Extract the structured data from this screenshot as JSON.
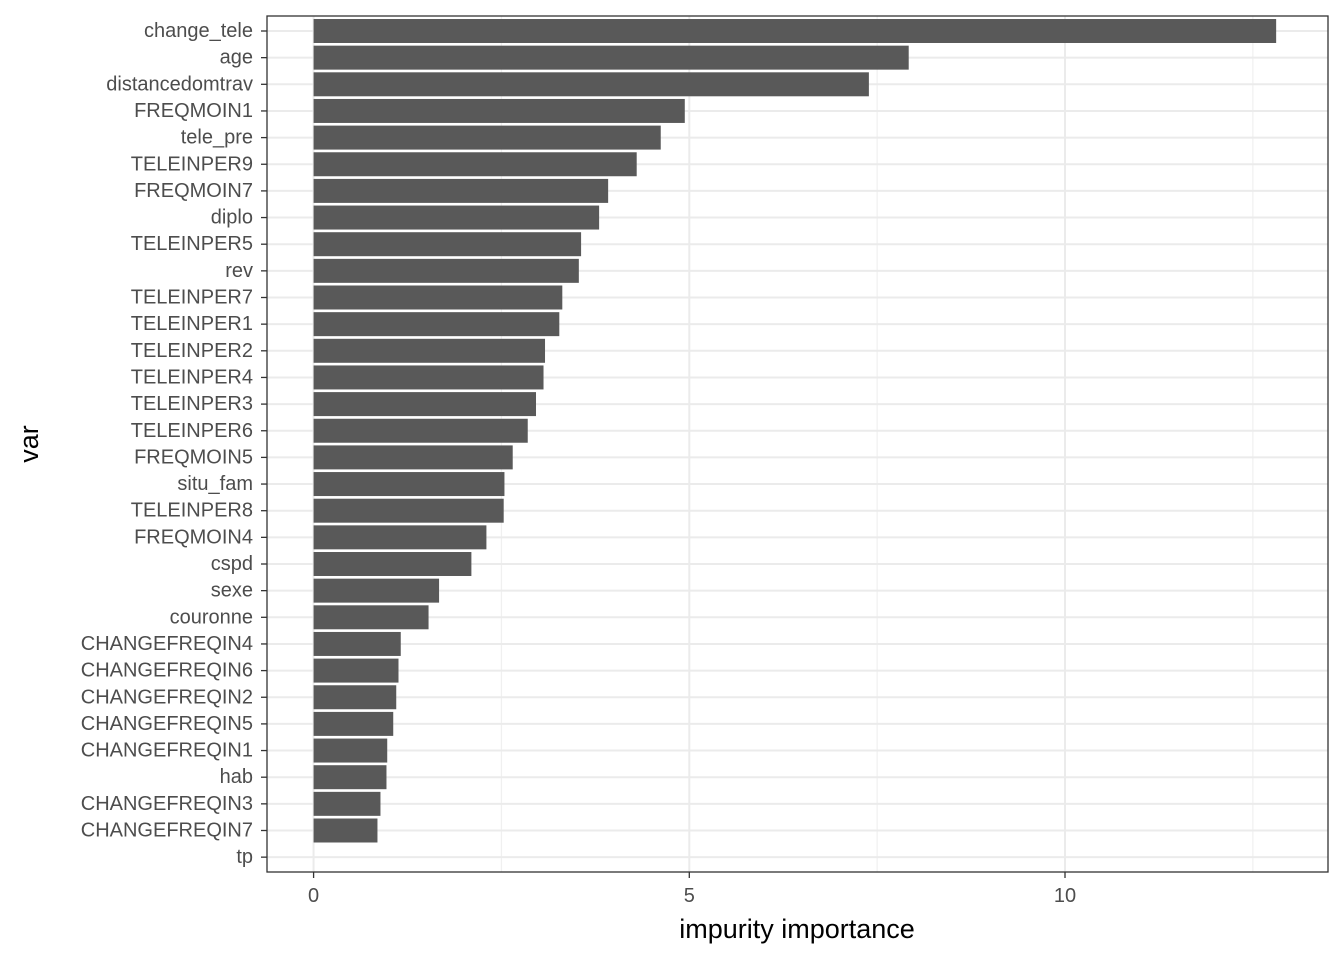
{
  "chart_data": {
    "type": "bar",
    "orientation": "horizontal",
    "xlabel": "impurity importance",
    "ylabel": "var",
    "xlim": [
      -0.62,
      13.5
    ],
    "x_ticks": [
      0,
      5,
      10
    ],
    "x_tick_labels": [
      "0",
      "5",
      "10"
    ],
    "grid": true,
    "theme": "black-and-white",
    "bar_color": "#595959",
    "categories": [
      "change_tele",
      "age",
      "distancedomtrav",
      "FREQMOIN1",
      "tele_pre",
      "TELEINPER9",
      "FREQMOIN7",
      "diplo",
      "TELEINPER5",
      "rev",
      "TELEINPER7",
      "TELEINPER1",
      "TELEINPER2",
      "TELEINPER4",
      "TELEINPER3",
      "TELEINPER6",
      "FREQMOIN5",
      "situ_fam",
      "TELEINPER8",
      "FREQMOIN4",
      "cspd",
      "sexe",
      "couronne",
      "CHANGEFREQIN4",
      "CHANGEFREQIN6",
      "CHANGEFREQIN2",
      "CHANGEFREQIN5",
      "CHANGEFREQIN1",
      "hab",
      "CHANGEFREQIN3",
      "CHANGEFREQIN7",
      "tp"
    ],
    "values": [
      12.81,
      7.92,
      7.39,
      4.94,
      4.62,
      4.3,
      3.92,
      3.8,
      3.56,
      3.53,
      3.31,
      3.27,
      3.08,
      3.06,
      2.96,
      2.85,
      2.65,
      2.54,
      2.53,
      2.3,
      2.1,
      1.67,
      1.53,
      1.16,
      1.13,
      1.1,
      1.06,
      0.98,
      0.97,
      0.89,
      0.85,
      0.0
    ]
  }
}
